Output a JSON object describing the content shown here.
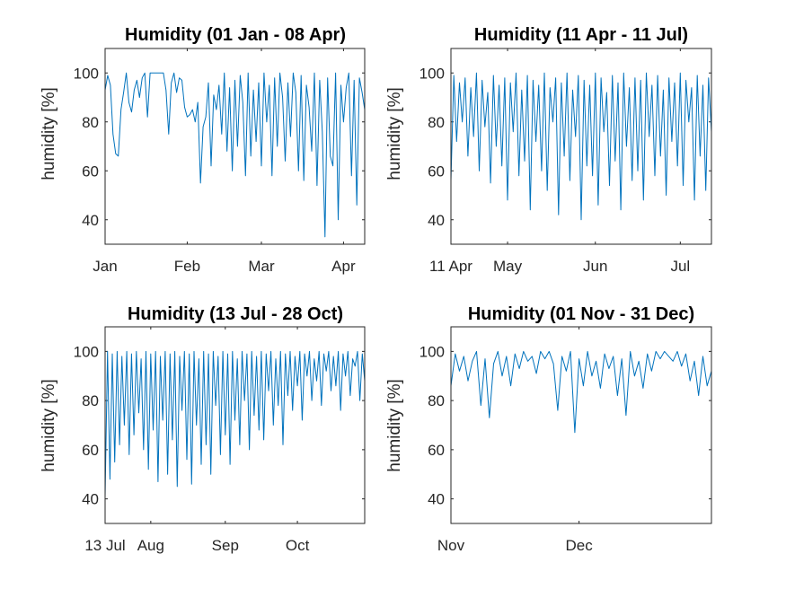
{
  "figure": {
    "background": "#ffffff",
    "line_color": "#0072BD",
    "axis_color": "#262626"
  },
  "chart_data": [
    {
      "type": "line",
      "title": "Humidity (01 Jan - 08 Apr)",
      "ylabel": "humidity [%]",
      "ylim": [
        30,
        110
      ],
      "yticks": [
        40,
        60,
        80,
        100
      ],
      "xlim": [
        0,
        98
      ],
      "xticks": [
        {
          "x": 0,
          "label": "Jan"
        },
        {
          "x": 31,
          "label": "Feb"
        },
        {
          "x": 59,
          "label": "Mar"
        },
        {
          "x": 90,
          "label": "Apr"
        }
      ],
      "series": [
        {
          "x": [
            0,
            1,
            2,
            3,
            4,
            5,
            6,
            7,
            8,
            9,
            10,
            11,
            12,
            13,
            14,
            15,
            16,
            17,
            18,
            19,
            20,
            21,
            22,
            23,
            24,
            25,
            26,
            27,
            28,
            29,
            30,
            31,
            32,
            33,
            34,
            35,
            36,
            37,
            38,
            39,
            40,
            41,
            42,
            43,
            44,
            45,
            46,
            47,
            48,
            49,
            50,
            51,
            52,
            53,
            54,
            55,
            56,
            57,
            58,
            59,
            60,
            61,
            62,
            63,
            64,
            65,
            66,
            67,
            68,
            69,
            70,
            71,
            72,
            73,
            74,
            75,
            76,
            77,
            78,
            79,
            80,
            81,
            82,
            83,
            84,
            85,
            86,
            87,
            88,
            89,
            90,
            91,
            92,
            93,
            94,
            95,
            96,
            97,
            98
          ],
          "y": [
            93,
            99,
            95,
            75,
            67,
            66,
            85,
            92,
            100,
            88,
            84,
            93,
            97,
            90,
            98,
            100,
            82,
            100,
            100,
            100,
            100,
            100,
            100,
            93,
            75,
            96,
            100,
            92,
            98,
            97,
            86,
            82,
            83,
            85,
            80,
            88,
            55,
            78,
            82,
            96,
            62,
            91,
            85,
            95,
            75,
            100,
            68,
            94,
            60,
            97,
            70,
            99,
            88,
            58,
            100,
            66,
            93,
            72,
            96,
            62,
            100,
            80,
            95,
            58,
            98,
            70,
            100,
            90,
            64,
            96,
            74,
            100,
            92,
            60,
            99,
            56,
            95,
            86,
            68,
            100,
            54,
            97,
            76,
            33,
            98,
            66,
            62,
            100,
            40,
            95,
            80,
            94,
            100,
            58,
            97,
            46,
            98,
            92,
            85
          ]
        }
      ]
    },
    {
      "type": "line",
      "title": "Humidity (11 Apr - 11 Jul)",
      "ylabel": "humidity [%]",
      "ylim": [
        30,
        110
      ],
      "yticks": [
        40,
        60,
        80,
        100
      ],
      "xlim": [
        0,
        92
      ],
      "xticks": [
        {
          "x": 0,
          "label": "11 Apr"
        },
        {
          "x": 20,
          "label": "May"
        },
        {
          "x": 51,
          "label": "Jun"
        },
        {
          "x": 81,
          "label": "Jul"
        }
      ],
      "series": [
        {
          "x": [
            0,
            1,
            2,
            3,
            4,
            5,
            6,
            7,
            8,
            9,
            10,
            11,
            12,
            13,
            14,
            15,
            16,
            17,
            18,
            19,
            20,
            21,
            22,
            23,
            24,
            25,
            26,
            27,
            28,
            29,
            30,
            31,
            32,
            33,
            34,
            35,
            36,
            37,
            38,
            39,
            40,
            41,
            42,
            43,
            44,
            45,
            46,
            47,
            48,
            49,
            50,
            51,
            52,
            53,
            54,
            55,
            56,
            57,
            58,
            59,
            60,
            61,
            62,
            63,
            64,
            65,
            66,
            67,
            68,
            69,
            70,
            71,
            72,
            73,
            74,
            75,
            76,
            77,
            78,
            79,
            80,
            81,
            82,
            83,
            84,
            85,
            86,
            87,
            88,
            89,
            90,
            91,
            92
          ],
          "y": [
            56,
            99,
            72,
            96,
            80,
            98,
            66,
            94,
            74,
            100,
            60,
            97,
            78,
            92,
            55,
            99,
            70,
            95,
            62,
            98,
            48,
            96,
            76,
            100,
            58,
            93,
            64,
            99,
            44,
            97,
            72,
            95,
            60,
            100,
            52,
            94,
            80,
            98,
            42,
            96,
            66,
            100,
            56,
            93,
            74,
            99,
            40,
            97,
            62,
            95,
            58,
            100,
            46,
            98,
            76,
            92,
            54,
            99,
            64,
            96,
            44,
            100,
            70,
            94,
            56,
            98,
            60,
            97,
            48,
            100,
            74,
            95,
            58,
            99,
            66,
            93,
            50,
            98,
            72,
            96,
            62,
            100,
            54,
            97,
            80,
            94,
            48,
            99,
            66,
            95,
            52,
            98,
            76
          ]
        }
      ]
    },
    {
      "type": "line",
      "title": "Humidity (13 Jul - 28 Oct)",
      "ylabel": "humidity [%]",
      "ylim": [
        30,
        110
      ],
      "yticks": [
        40,
        60,
        80,
        100
      ],
      "xlim": [
        0,
        108
      ],
      "xticks": [
        {
          "x": 0,
          "label": "13 Jul"
        },
        {
          "x": 19,
          "label": "Aug"
        },
        {
          "x": 50,
          "label": "Sep"
        },
        {
          "x": 80,
          "label": "Oct"
        }
      ],
      "series": [
        {
          "x": [
            0,
            1,
            2,
            3,
            4,
            5,
            6,
            7,
            8,
            9,
            10,
            11,
            12,
            13,
            14,
            15,
            16,
            17,
            18,
            19,
            20,
            21,
            22,
            23,
            24,
            25,
            26,
            27,
            28,
            29,
            30,
            31,
            32,
            33,
            34,
            35,
            36,
            37,
            38,
            39,
            40,
            41,
            42,
            43,
            44,
            45,
            46,
            47,
            48,
            49,
            50,
            51,
            52,
            53,
            54,
            55,
            56,
            57,
            58,
            59,
            60,
            61,
            62,
            63,
            64,
            65,
            66,
            67,
            68,
            69,
            70,
            71,
            72,
            73,
            74,
            75,
            76,
            77,
            78,
            79,
            80,
            81,
            82,
            83,
            84,
            85,
            86,
            87,
            88,
            89,
            90,
            91,
            92,
            93,
            94,
            95,
            96,
            97,
            98,
            99,
            100,
            101,
            102,
            103,
            104,
            105,
            106,
            107,
            108
          ],
          "y": [
            41,
            100,
            48,
            99,
            55,
            100,
            62,
            98,
            70,
            100,
            58,
            99,
            66,
            100,
            75,
            97,
            60,
            100,
            52,
            99,
            68,
            100,
            47,
            98,
            72,
            100,
            50,
            99,
            64,
            100,
            45,
            98,
            76,
            100,
            56,
            99,
            46,
            100,
            70,
            97,
            54,
            100,
            62,
            99,
            50,
            100,
            78,
            98,
            58,
            100,
            66,
            99,
            54,
            100,
            72,
            97,
            62,
            100,
            80,
            99,
            60,
            100,
            74,
            98,
            68,
            100,
            64,
            99,
            84,
            100,
            70,
            97,
            78,
            100,
            62,
            99,
            82,
            100,
            76,
            98,
            86,
            100,
            72,
            99,
            90,
            100,
            80,
            97,
            88,
            100,
            78,
            99,
            92,
            100,
            84,
            98,
            86,
            100,
            76,
            99,
            90,
            100,
            82,
            97,
            94,
            100,
            80,
            99,
            88
          ]
        }
      ]
    },
    {
      "type": "line",
      "title": "Humidity (01 Nov - 31 Dec)",
      "ylabel": "humidity [%]",
      "ylim": [
        30,
        110
      ],
      "yticks": [
        40,
        60,
        80,
        100
      ],
      "xlim": [
        0,
        61
      ],
      "xticks": [
        {
          "x": 0,
          "label": "Nov"
        },
        {
          "x": 30,
          "label": "Dec"
        }
      ],
      "series": [
        {
          "x": [
            0,
            1,
            2,
            3,
            4,
            5,
            6,
            7,
            8,
            9,
            10,
            11,
            12,
            13,
            14,
            15,
            16,
            17,
            18,
            19,
            20,
            21,
            22,
            23,
            24,
            25,
            26,
            27,
            28,
            29,
            30,
            31,
            32,
            33,
            34,
            35,
            36,
            37,
            38,
            39,
            40,
            41,
            42,
            43,
            44,
            45,
            46,
            47,
            48,
            49,
            50,
            51,
            52,
            53,
            54,
            55,
            56,
            57,
            58,
            59,
            60,
            61
          ],
          "y": [
            86,
            99,
            92,
            98,
            88,
            96,
            100,
            78,
            97,
            73,
            95,
            100,
            90,
            98,
            86,
            99,
            93,
            100,
            96,
            98,
            91,
            100,
            97,
            100,
            95,
            76,
            98,
            92,
            100,
            67,
            97,
            86,
            100,
            90,
            96,
            85,
            99,
            93,
            98,
            82,
            97,
            74,
            100,
            90,
            96,
            85,
            99,
            92,
            100,
            97,
            100,
            98,
            96,
            100,
            94,
            99,
            88,
            96,
            82,
            98,
            86,
            92
          ]
        }
      ]
    }
  ]
}
